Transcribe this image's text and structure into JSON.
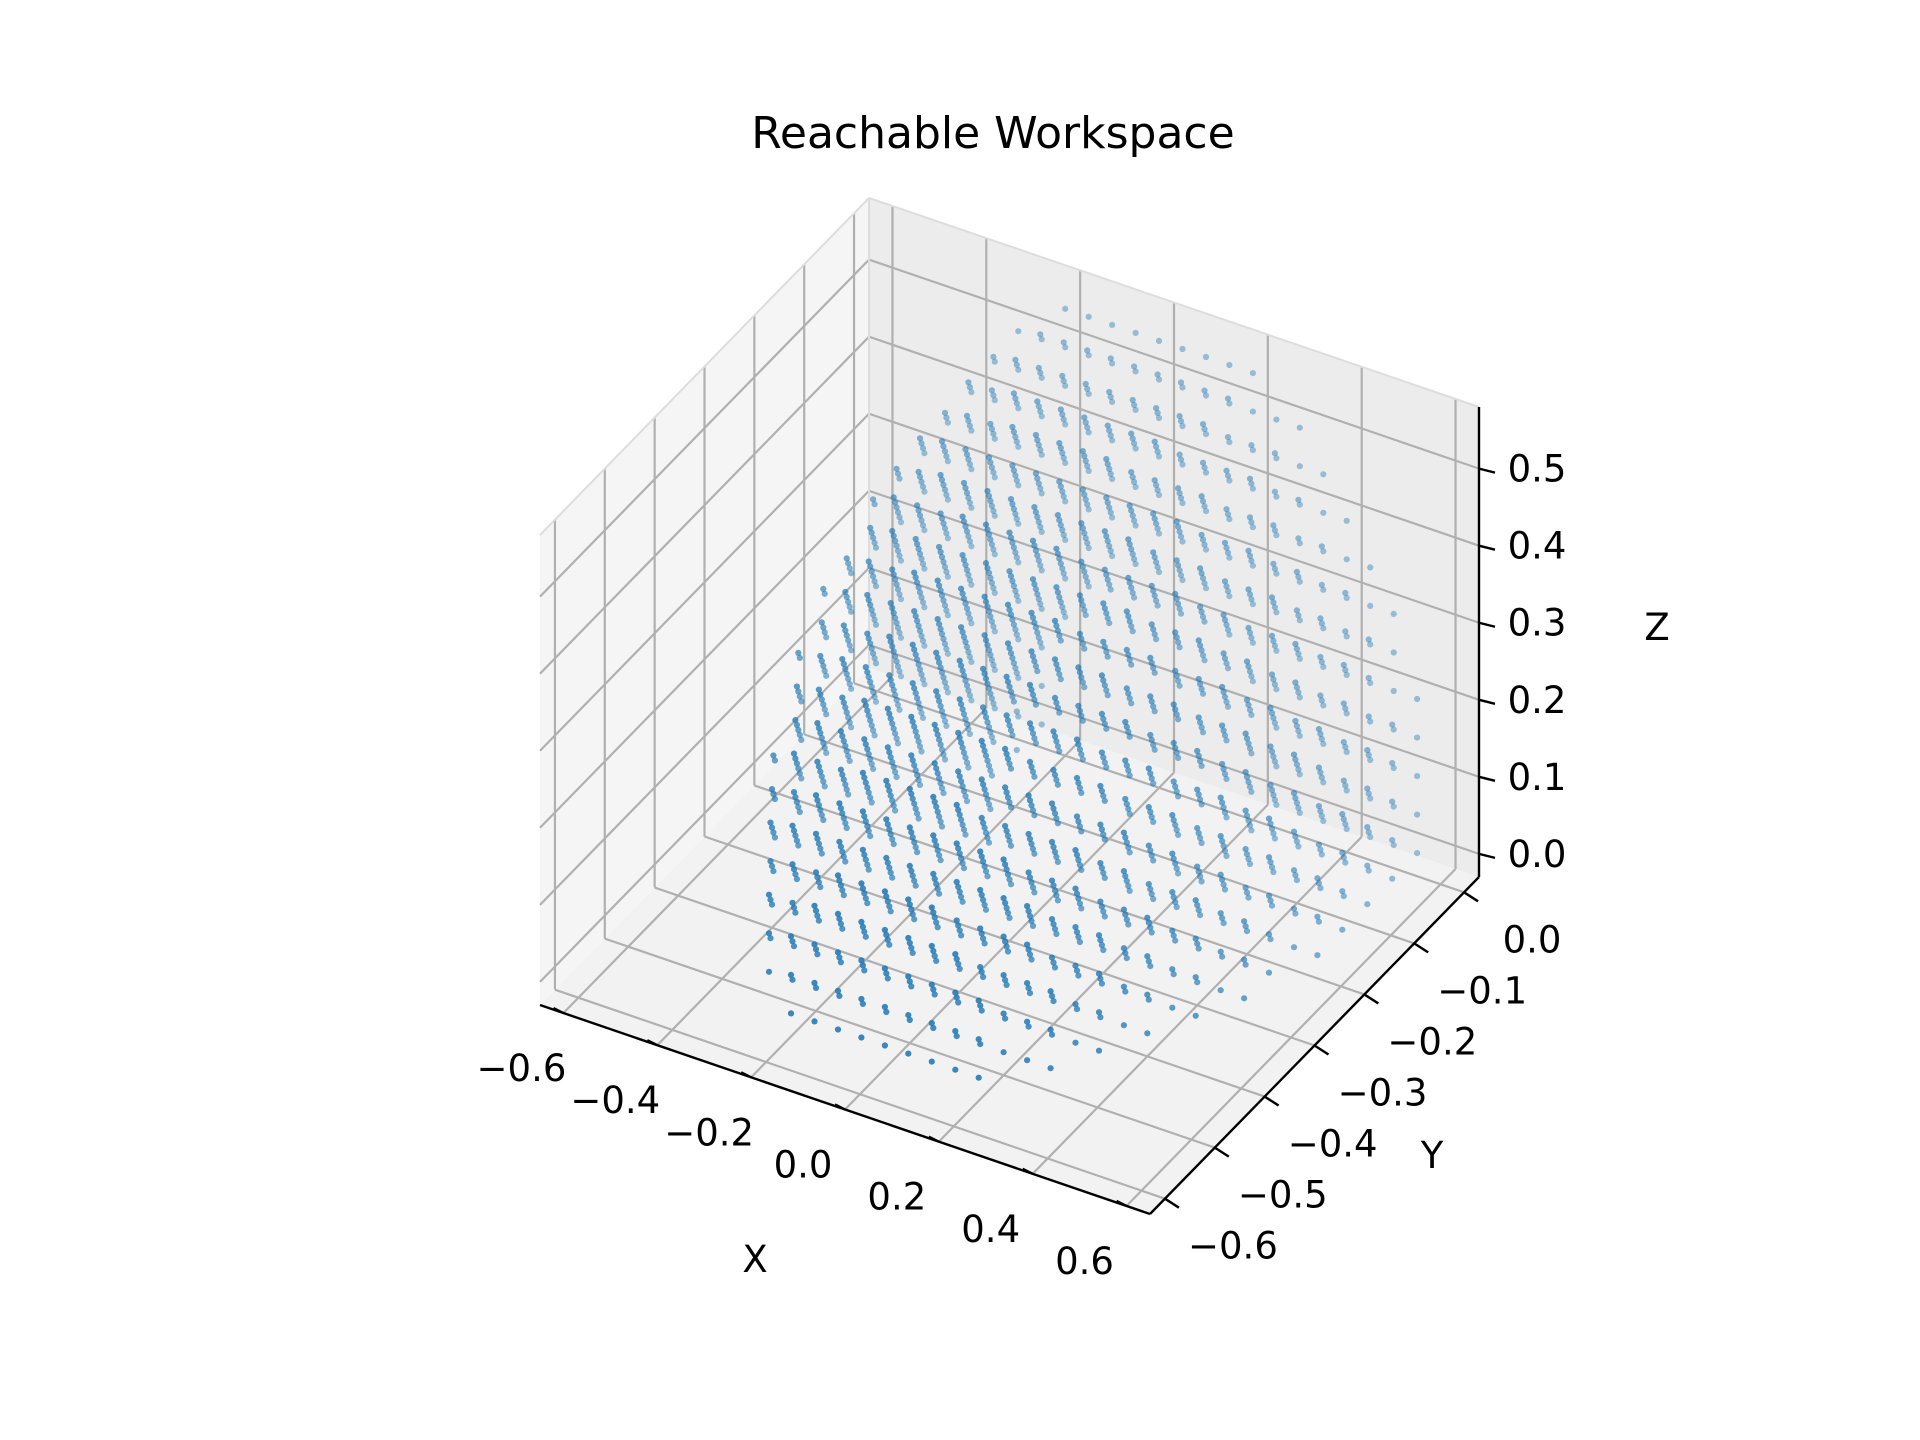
{
  "chart_data": {
    "type": "scatter",
    "projection": "3d",
    "title": "Reachable Workspace",
    "xlabel": "X",
    "ylabel": "Y",
    "zlabel": "Z",
    "xlim": [
      -0.6,
      0.6
    ],
    "ylim": [
      -0.6,
      0.0
    ],
    "zlim": [
      0.0,
      0.55
    ],
    "x_ticks": [
      "−0.6",
      "−0.4",
      "−0.2",
      "0.0",
      "0.2",
      "0.4",
      "0.6"
    ],
    "y_ticks": [
      "−0.6",
      "−0.5",
      "−0.4",
      "−0.3",
      "−0.2",
      "−0.1",
      "0.0"
    ],
    "z_ticks": [
      "0.0",
      "0.1",
      "0.2",
      "0.3",
      "0.4",
      "0.5"
    ],
    "grid": true,
    "marker_color": "#1f77b4",
    "pane_colors": {
      "floor": "#f2f2f2",
      "back": "#ececec",
      "side": "#f5f5f5"
    },
    "series": [
      {
        "description": "Points sampled on a regular grid (spacing 0.05) inside a spherical shell of the reachable workspace",
        "grid_spacing": 0.05,
        "x_range": [
          -0.55,
          0.55
        ],
        "y_range": [
          -0.55,
          0.0
        ],
        "z_range": [
          0.0,
          0.55
        ],
        "center": [
          0.0,
          0.0,
          0.0
        ],
        "outer_radius": 0.6,
        "inner_radius": 0.25
      }
    ]
  }
}
